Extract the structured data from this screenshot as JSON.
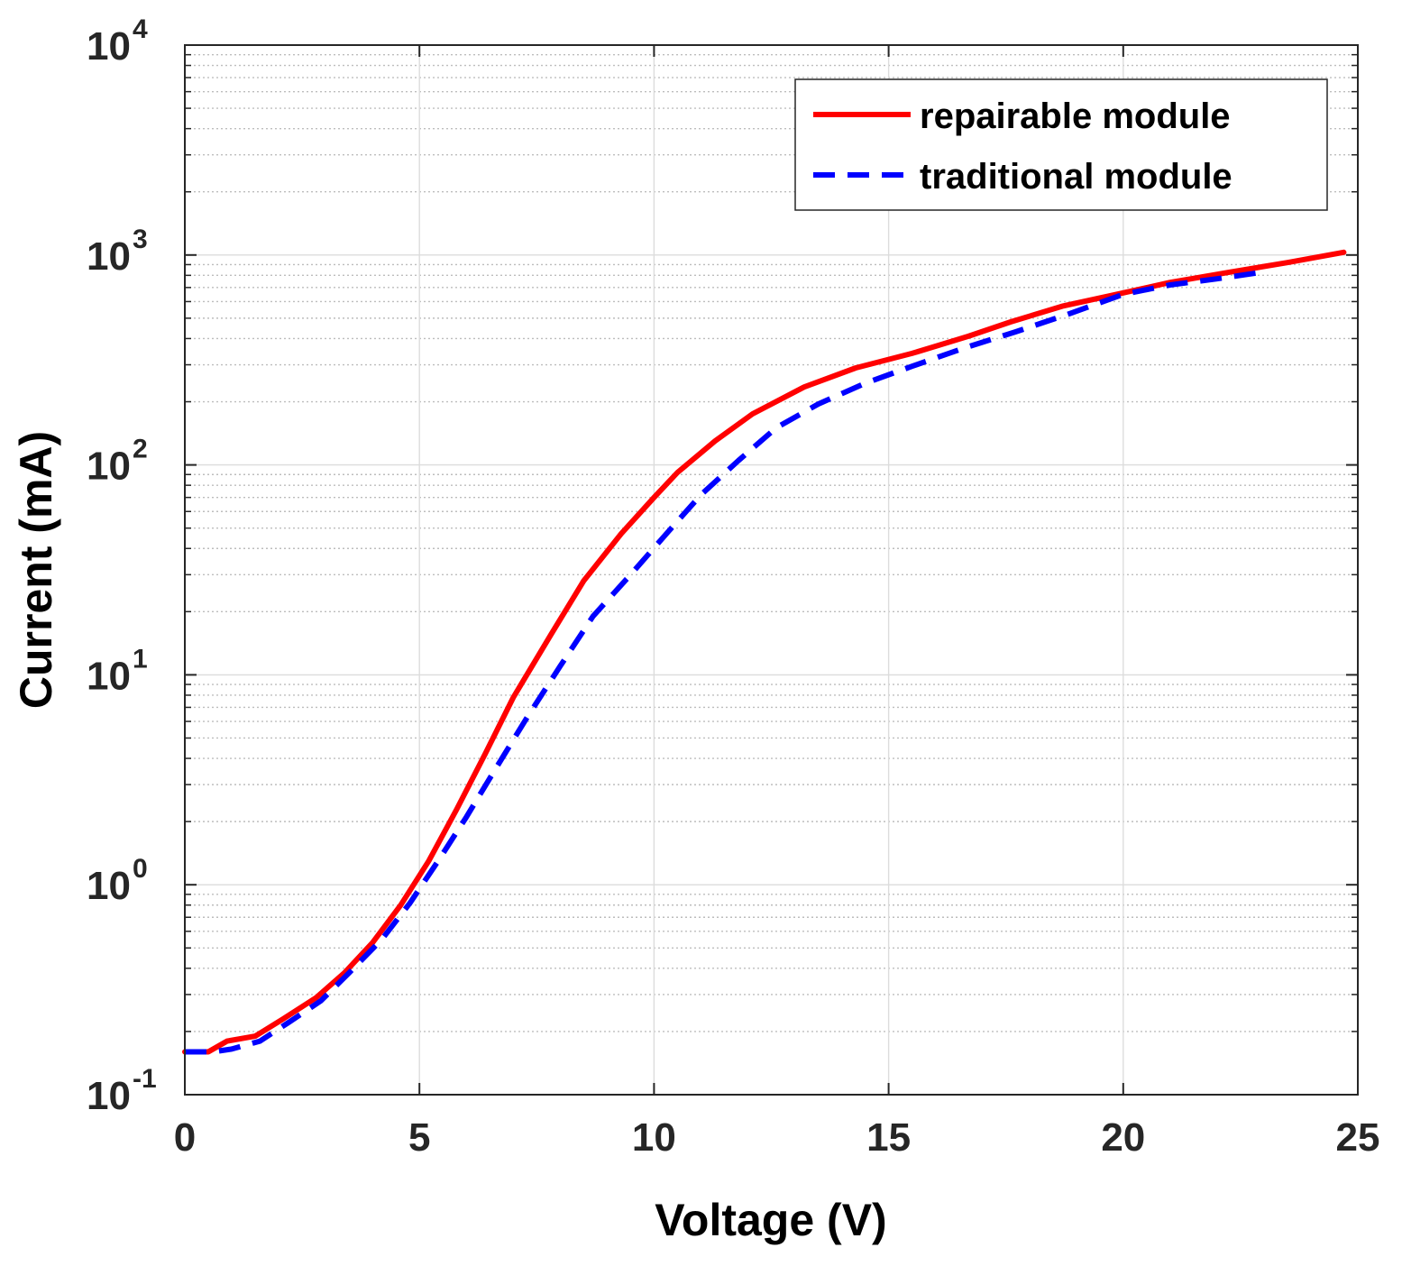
{
  "chart_data": {
    "type": "line",
    "xlabel": "Voltage (V)",
    "ylabel": "Current (mA)",
    "xscale": "linear",
    "yscale": "log",
    "xlim": [
      0,
      25
    ],
    "ylim": [
      0.1,
      10000
    ],
    "xticks": [
      0,
      5,
      10,
      15,
      20,
      25
    ],
    "xtick_labels": [
      "0",
      "5",
      "10",
      "15",
      "20",
      "25"
    ],
    "yticks": [
      0.1,
      1,
      10,
      100,
      1000,
      10000
    ],
    "ytick_labels": [
      {
        "base": "10",
        "exp": "-1"
      },
      {
        "base": "10",
        "exp": "0"
      },
      {
        "base": "10",
        "exp": "1"
      },
      {
        "base": "10",
        "exp": "2"
      },
      {
        "base": "10",
        "exp": "3"
      },
      {
        "base": "10",
        "exp": "4"
      }
    ],
    "grid": true,
    "minor_grid": true,
    "legend_position": "top-right",
    "series": [
      {
        "name": "repairable module",
        "color": "#ff0000",
        "style": "solid",
        "x": [
          0,
          0.5,
          0.9,
          1.5,
          2.1,
          2.8,
          3.4,
          4.0,
          4.6,
          5.2,
          5.8,
          6.4,
          7.0,
          7.8,
          8.5,
          9.3,
          10.0,
          10.5,
          11.3,
          12.1,
          13.2,
          14.3,
          15.5,
          16.7,
          17.6,
          18.7,
          20.0,
          21.0,
          22.3,
          23.5,
          24.7
        ],
        "y": [
          0.16,
          0.16,
          0.18,
          0.19,
          0.23,
          0.29,
          0.38,
          0.53,
          0.8,
          1.3,
          2.3,
          4.2,
          7.8,
          15.5,
          28,
          47,
          70,
          92,
          130,
          175,
          235,
          290,
          340,
          410,
          480,
          570,
          660,
          740,
          830,
          920,
          1030
        ]
      },
      {
        "name": "traditional module",
        "color": "#0000ff",
        "style": "dashed",
        "x": [
          0,
          0.6,
          1.0,
          1.6,
          2.2,
          2.9,
          3.5,
          4.2,
          4.8,
          5.4,
          6.0,
          6.6,
          7.3,
          8.0,
          8.7,
          9.5,
          10.3,
          11.0,
          11.8,
          12.6,
          13.5,
          14.5,
          15.5,
          16.6,
          17.7,
          18.8,
          20.0,
          21.0,
          22.0,
          23.0
        ],
        "y": [
          0.16,
          0.16,
          0.165,
          0.18,
          0.22,
          0.28,
          0.38,
          0.55,
          0.82,
          1.3,
          2.1,
          3.5,
          6.3,
          11,
          19,
          30,
          48,
          72,
          105,
          150,
          195,
          245,
          295,
          360,
          430,
          520,
          650,
          720,
          770,
          830
        ]
      }
    ]
  }
}
